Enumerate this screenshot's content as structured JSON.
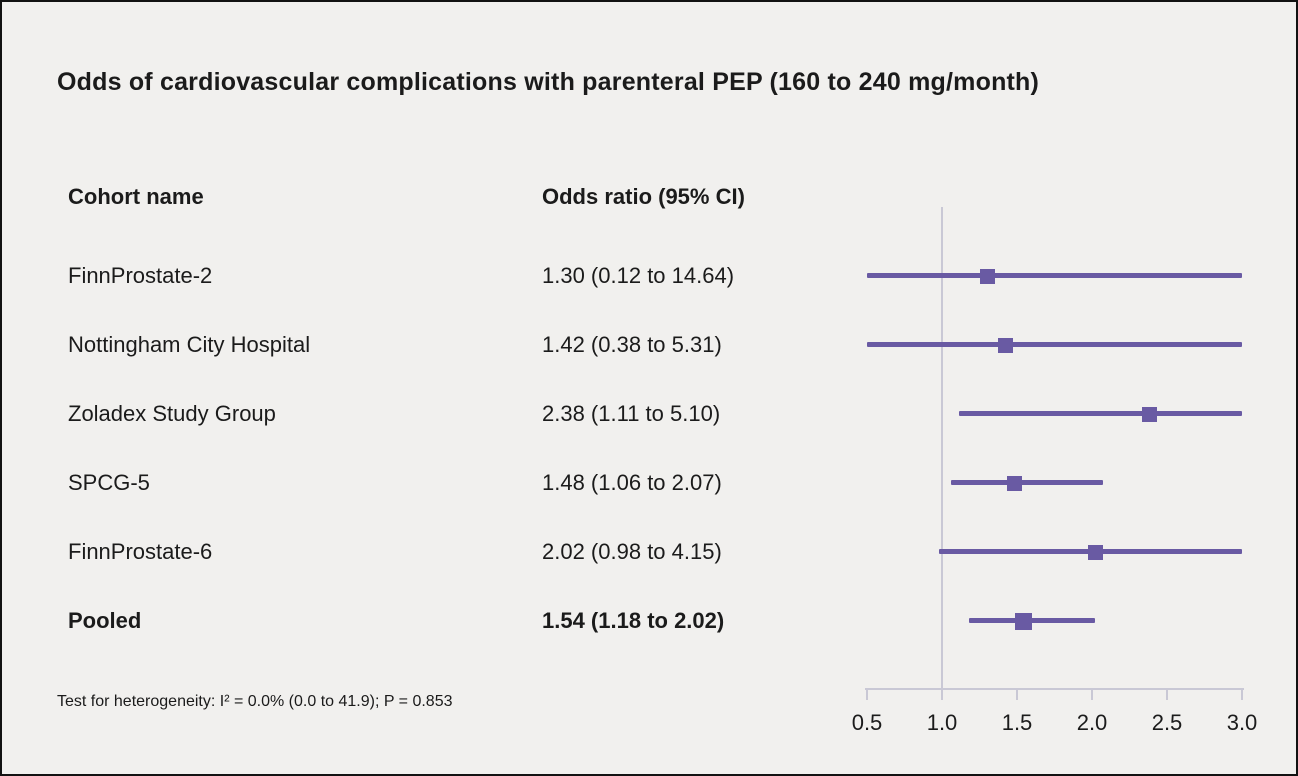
{
  "title": "Odds of cardiovascular complications with parenteral PEP (160 to 240 mg/month)",
  "columns": {
    "cohort": "Cohort name",
    "odds_ratio": "Odds ratio (95% CI)"
  },
  "footnote": "Test for heterogeneity: I² = 0.0% (0.0 to 41.9); P = 0.853",
  "chart_data": {
    "type": "forest",
    "title": "Odds of cardiovascular complications with parenteral PEP (160 to 240 mg/month)",
    "x_axis": {
      "ticks": [
        "0.5",
        "1.0",
        "1.5",
        "2.0",
        "2.5",
        "3.0"
      ],
      "range": [
        0.5,
        3.0
      ],
      "reference_line": 1.0,
      "scale": "linear"
    },
    "colors": {
      "marker": "#695aa3",
      "axis": "#c9c8d5",
      "background": "#f1f0ee"
    },
    "studies": [
      {
        "name": "FinnProstate-2",
        "estimate": 1.3,
        "ci_low": 0.12,
        "ci_high": 14.64,
        "label": "1.30 (0.12 to 14.64)",
        "pooled": false
      },
      {
        "name": "Nottingham City Hospital",
        "estimate": 1.42,
        "ci_low": 0.38,
        "ci_high": 5.31,
        "label": "1.42 (0.38 to 5.31)",
        "pooled": false
      },
      {
        "name": "Zoladex Study Group",
        "estimate": 2.38,
        "ci_low": 1.11,
        "ci_high": 5.1,
        "label": "2.38 (1.11 to 5.10)",
        "pooled": false
      },
      {
        "name": "SPCG-5",
        "estimate": 1.48,
        "ci_low": 1.06,
        "ci_high": 2.07,
        "label": "1.48 (1.06 to 2.07)",
        "pooled": false
      },
      {
        "name": "FinnProstate-6",
        "estimate": 2.02,
        "ci_low": 0.98,
        "ci_high": 4.15,
        "label": "2.02 (0.98 to 4.15)",
        "pooled": false
      },
      {
        "name": "Pooled",
        "estimate": 1.54,
        "ci_low": 1.18,
        "ci_high": 2.02,
        "label": "1.54 (1.18 to 2.02)",
        "pooled": true
      }
    ]
  }
}
